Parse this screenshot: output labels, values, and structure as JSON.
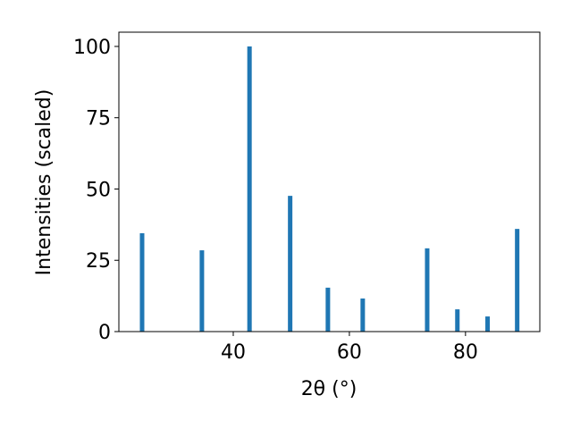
{
  "chart_data": {
    "type": "bar",
    "x_label": "2θ (°)",
    "y_label": "Intensities (scaled)",
    "x": [
      24.3,
      34.6,
      42.8,
      49.8,
      56.3,
      62.3,
      73.4,
      78.6,
      83.8,
      88.9
    ],
    "values": [
      34.5,
      28.5,
      100,
      47.6,
      15.4,
      11.6,
      29.2,
      7.8,
      5.3,
      36.0
    ],
    "color": "#1f77b4",
    "xlim": [
      20.3,
      92.8
    ],
    "xticks": [
      40,
      60,
      80
    ],
    "ylim": [
      0,
      105
    ],
    "yticks": [
      0,
      25,
      50,
      75,
      100
    ],
    "grid": false
  }
}
